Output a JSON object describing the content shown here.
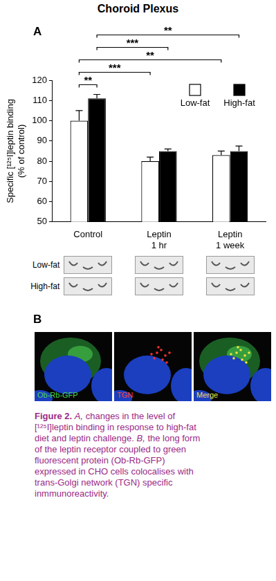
{
  "figure_title": "Choroid Plexus",
  "panel_letters": [
    "A",
    "B"
  ],
  "chart_data": {
    "type": "bar",
    "y_label": "Specific [¹²⁵I]leptin binding (% of control)",
    "categories": [
      "Control",
      "Leptin 1 hr",
      "Leptin 1 week"
    ],
    "series": [
      {
        "name": "Low-fat",
        "color": "#ffffff",
        "values": [
          100,
          80,
          83
        ],
        "errors": [
          5,
          2,
          2
        ]
      },
      {
        "name": "High-fat",
        "color": "#000000",
        "values": [
          111,
          85,
          85
        ],
        "errors": [
          2,
          1,
          2.5
        ]
      }
    ],
    "ylim": [
      50,
      120
    ],
    "yticks": [
      50,
      60,
      70,
      80,
      90,
      100,
      110,
      120
    ],
    "grid": false,
    "legend": "upper right",
    "comparisons": [
      {
        "label": "**",
        "between": [
          [
            "Control",
            "Low-fat"
          ],
          [
            "Control",
            "High-fat"
          ]
        ]
      },
      {
        "label": "***",
        "between": [
          [
            "Control",
            "Low-fat"
          ],
          [
            "Leptin 1 hr",
            "Low-fat"
          ]
        ]
      },
      {
        "label": "**",
        "between": [
          [
            "Control",
            "Low-fat"
          ],
          [
            "Leptin 1 week",
            "Low-fat"
          ]
        ]
      },
      {
        "label": "***",
        "between": [
          [
            "Control",
            "High-fat"
          ],
          [
            "Leptin 1 hr",
            "High-fat"
          ]
        ]
      },
      {
        "label": "**",
        "between": [
          [
            "Control",
            "High-fat"
          ],
          [
            "Leptin 1 week",
            "High-fat"
          ]
        ]
      }
    ]
  },
  "image_rows": [
    "Low-fat",
    "High-fat"
  ],
  "micrographs": [
    "Ob-Rb-GFP",
    "TGN",
    "Merge"
  ],
  "caption": {
    "label": "Figure 2.",
    "parts": [
      {
        "panel": "A,",
        "text": "changes in the level of [¹²⁵I]leptin binding in response to high-fat diet and leptin challenge."
      },
      {
        "panel": "B,",
        "text": "the long form of the leptin receptor coupled to green fluorescent protein (Ob-Rb-GFP) expressed in CHO cells colocalises with trans-Golgi network (TGN) specific inmmunoreactivity."
      }
    ]
  }
}
